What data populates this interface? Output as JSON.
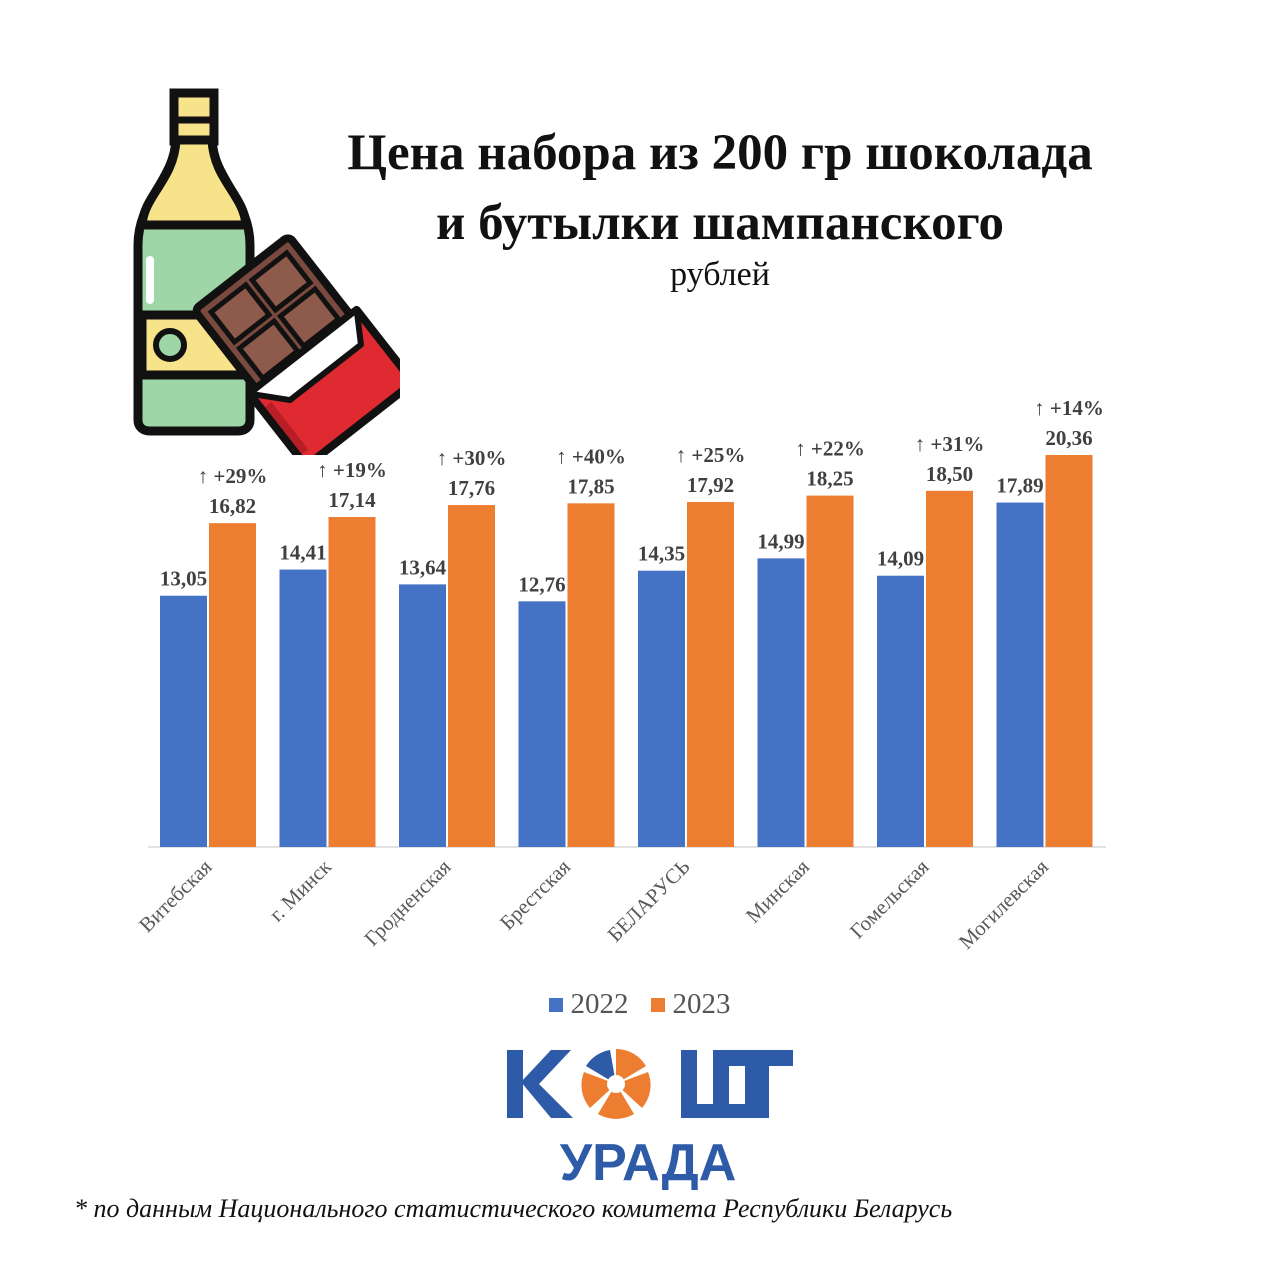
{
  "header": {
    "title_line1": "Цена набора из 200 гр шоколада",
    "title_line2": "и бутылки шампанского",
    "unit": "рублей"
  },
  "chart_data": {
    "type": "bar",
    "categories": [
      "Витебская",
      "г. Минск",
      "Гродненская",
      "Брестская",
      "БЕЛАРУСЬ",
      "Минская",
      "Гомельская",
      "Могилевская"
    ],
    "series": [
      {
        "name": "2022",
        "color": "#4472C4",
        "values": [
          13.05,
          14.41,
          13.64,
          12.76,
          14.35,
          14.99,
          14.09,
          17.89
        ],
        "labels": [
          "13,05",
          "14,41",
          "13,64",
          "12,76",
          "14,35",
          "14,99",
          "14,09",
          "17,89"
        ]
      },
      {
        "name": "2023",
        "color": "#ED7D31",
        "values": [
          16.82,
          17.14,
          17.76,
          17.85,
          17.92,
          18.25,
          18.5,
          20.36
        ],
        "labels": [
          "16,82",
          "17,14",
          "17,76",
          "17,85",
          "17,92",
          "18,25",
          "18,50",
          "20,36"
        ]
      }
    ],
    "change_labels": [
      "↑ +29%",
      "↑ +19%",
      "↑ +30%",
      "↑ +40%",
      "↑ +25%",
      "↑ +22%",
      "↑ +31%",
      "↑ +14%"
    ],
    "ylim": [
      0,
      20.36
    ],
    "grid": false,
    "legend_position": "bottom"
  },
  "legend": {
    "items": [
      {
        "label": "2022",
        "color": "#4472C4"
      },
      {
        "label": "2023",
        "color": "#ED7D31"
      }
    ]
  },
  "logo": {
    "word1": "КОШТ",
    "word2": "УРАДА",
    "blue": "#2E5BA8",
    "orange": "#ED7D31"
  },
  "illustration": {
    "icons": [
      "champagne-bottle-icon",
      "chocolate-bar-icon"
    ]
  },
  "footnote": "* по данным Национального статистического комитета Республики Беларусь"
}
